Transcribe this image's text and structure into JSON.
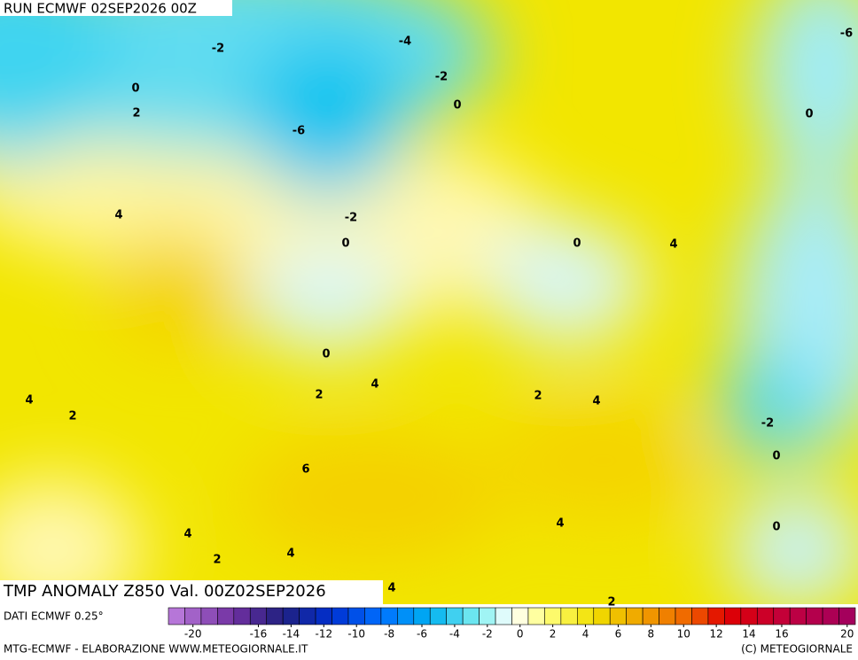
{
  "header": {
    "run": "RUN ECMWF 02SEP2026 00Z"
  },
  "map": {
    "title": "TMP ANOMALY Z850 Val. 00Z02SEP2026",
    "contour_labels": [
      -2,
      -4,
      -6,
      0,
      2,
      -2,
      0,
      -6,
      0,
      4,
      -2,
      0,
      0,
      4,
      0,
      4,
      2,
      4,
      2,
      2,
      4,
      -2,
      0,
      6,
      4,
      0,
      4,
      4,
      2,
      4,
      2
    ]
  },
  "footer": {
    "source": "DATI ECMWF 0.25°",
    "credit": "MTG-ECMWF - ELABORAZIONE WWW.METEOGIORNALE.IT",
    "copyright": "(C) METEOGIORNALE"
  },
  "colorbar": {
    "lim": [
      -21,
      21
    ],
    "ticks": [
      -20,
      -16,
      -14,
      -12,
      -10,
      -8,
      -6,
      -4,
      -2,
      0,
      2,
      4,
      6,
      8,
      10,
      12,
      14,
      16,
      20
    ]
  }
}
